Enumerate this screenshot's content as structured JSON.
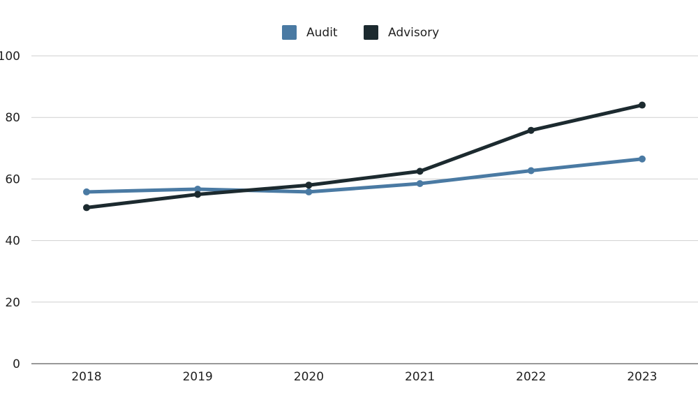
{
  "chart_data": {
    "type": "line",
    "title": "",
    "xlabel": "",
    "ylabel": "",
    "categories": [
      "2018",
      "2019",
      "2020",
      "2021",
      "2022",
      "2023"
    ],
    "series": [
      {
        "name": "Audit",
        "color": "#4a7aa3",
        "values": [
          55.8,
          56.7,
          55.8,
          58.5,
          62.7,
          66.5
        ]
      },
      {
        "name": "Advisory",
        "color": "#1c2a2f",
        "values": [
          50.7,
          55.0,
          58.0,
          62.5,
          75.8,
          84.0
        ]
      }
    ],
    "ylim": [
      0,
      100
    ],
    "yticks": [
      0,
      20,
      40,
      60,
      80,
      100
    ],
    "grid": true,
    "legend_position": "top-center"
  }
}
